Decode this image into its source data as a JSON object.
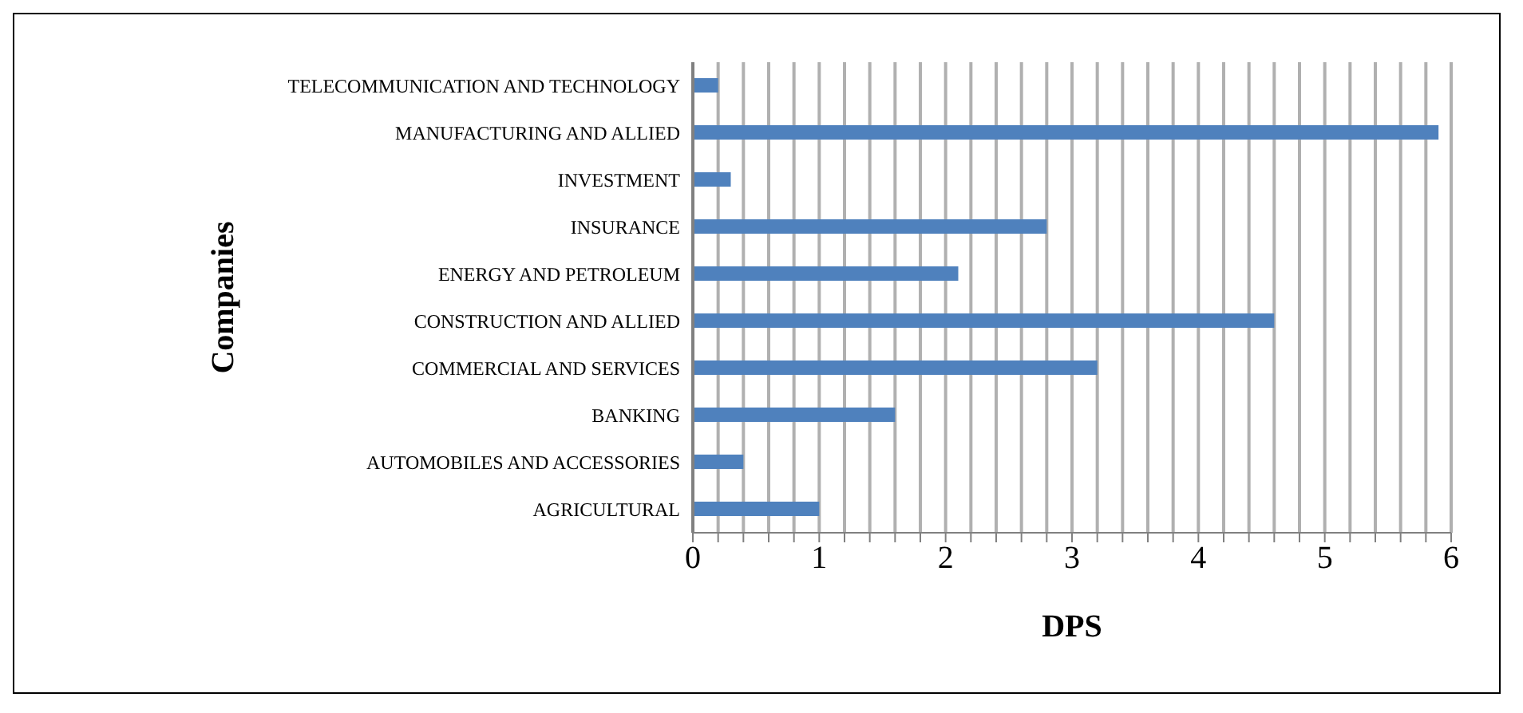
{
  "chart_data": {
    "type": "bar",
    "orientation": "horizontal",
    "xlabel": "DPS",
    "ylabel": "Companies",
    "categories": [
      "TELECOMMUNICATION AND TECHNOLOGY",
      "MANUFACTURING AND ALLIED",
      "INVESTMENT",
      "INSURANCE",
      "ENERGY AND PETROLEUM",
      "CONSTRUCTION AND ALLIED",
      "COMMERCIAL AND SERVICES",
      "BANKING",
      "AUTOMOBILES AND ACCESSORIES",
      "AGRICULTURAL"
    ],
    "values": [
      0.2,
      5.9,
      0.3,
      2.8,
      2.1,
      4.6,
      3.2,
      1.6,
      0.4,
      1.0
    ],
    "color": "#4f81bd",
    "xlim": [
      0,
      6
    ],
    "xticks": [
      0,
      {
        "value": 0.2,
        "label": null
      },
      {
        "value": 0.4,
        "label": null
      },
      {
        "value": 0.6,
        "label": null
      },
      {
        "value": 0.8,
        "label": null
      },
      1,
      {
        "value": 1.2,
        "label": null
      },
      {
        "value": 1.4,
        "label": null
      },
      {
        "value": 1.6,
        "label": null
      },
      {
        "value": 1.8,
        "label": null
      },
      2,
      {
        "value": 2.2,
        "label": null
      },
      {
        "value": 2.4,
        "label": null
      },
      {
        "value": 2.6,
        "label": null
      },
      {
        "value": 2.8,
        "label": null
      },
      3,
      {
        "value": 3.2,
        "label": null
      },
      {
        "value": 3.4,
        "label": null
      },
      {
        "value": 3.6,
        "label": null
      },
      {
        "value": 3.8,
        "label": null
      },
      4,
      {
        "value": 4.2,
        "label": null
      },
      {
        "value": 4.4,
        "label": null
      },
      {
        "value": 4.6,
        "label": null
      },
      {
        "value": 4.8,
        "label": null
      },
      5,
      {
        "value": 5.2,
        "label": null
      },
      {
        "value": 5.4,
        "label": null
      },
      {
        "value": 5.6,
        "label": null
      },
      {
        "value": 5.8,
        "label": null
      },
      6
    ],
    "grid": "x"
  }
}
